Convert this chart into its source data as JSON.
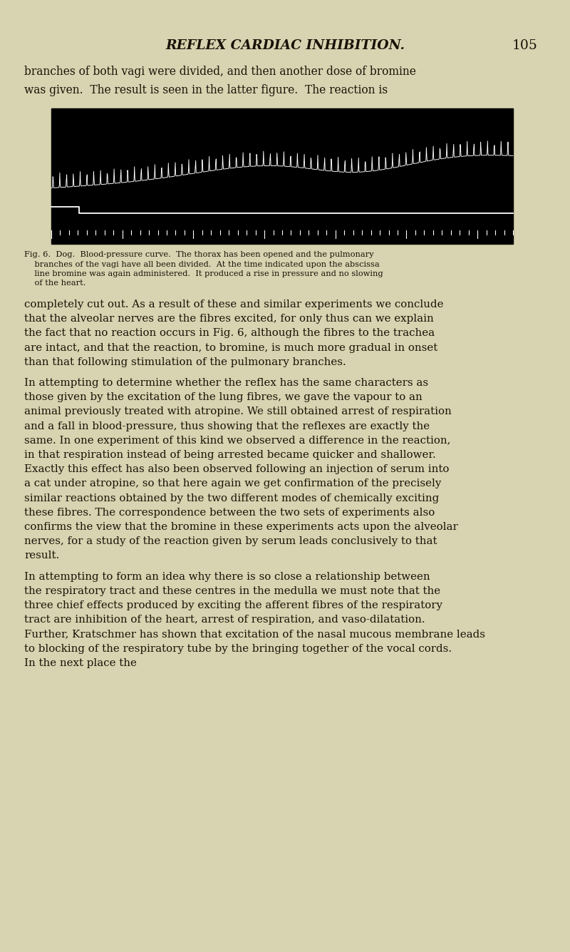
{
  "page_bg": "#d8d3b0",
  "header_text": "REFLEX CARDIAC INHIBITION.",
  "page_num": "105",
  "intro_lines": [
    "branches of both vagi were divided, and then another dose of bromine",
    "was given.  The result is seen in the latter figure.  The reaction is"
  ],
  "fig_caption_lines": [
    "Fig. 6.  Dog.  Blood-pressure curve.  The thorax has been opened and the pulmonary",
    "    branches of the vagi have all been divided.  At the time indicated upon the abscissa",
    "    line bromine was again administered.  It produced a rise in pressure and no slowing",
    "    of the heart."
  ],
  "body_paragraphs": [
    {
      "indent": false,
      "text": "completely cut out.  As a result of these and similar experiments we conclude that the alveolar nerves are the fibres excited, for only thus can we explain the fact that no reaction occurs in Fig. 6, although the fibres to the trachea are intact, and that the reaction, to bromine, is much more gradual in onset than that following stimulation of the pulmonary branches."
    },
    {
      "indent": true,
      "text": "In attempting to determine whether the reflex has the same characters as those given by the excitation of the lung fibres, we gave the vapour to an animal previously treated with atropine.  We still obtained arrest of respiration and a fall in blood-pressure, thus showing that the reflexes are exactly the same.  In one experiment of this kind we observed a difference in the reaction, in that respiration instead of being arrested became quicker and shallower.  Exactly this effect has also been observed following an injection of serum into a cat under atropine, so that here again we get confirmation of the precisely similar reactions obtained by the two different modes of chemically exciting these fibres.  The correspondence between the two sets of experiments also confirms the view that the bromine in these experiments acts upon the alveolar nerves, for a study of the reaction given by serum leads conclusively to that result."
    },
    {
      "indent": true,
      "text": "In attempting to form an idea why there is so close a relationship between the respiratory tract and these centres in the medulla we must note that the three chief effects produced by exciting the afferent fibres of the respiratory tract are inhibition of the heart, arrest of respiration, and vaso-dilatation.  Further, Kratschmer has shown that excitation of the nasal mucous membrane leads to blocking of the respiratory tube by the bringing together of the vocal cords.  In the next place the"
    }
  ],
  "text_color": "#1a1208",
  "caption_fontsize": 8.2,
  "body_fontsize": 10.8,
  "header_fontsize": 13.5,
  "intro_fontsize": 11.2
}
